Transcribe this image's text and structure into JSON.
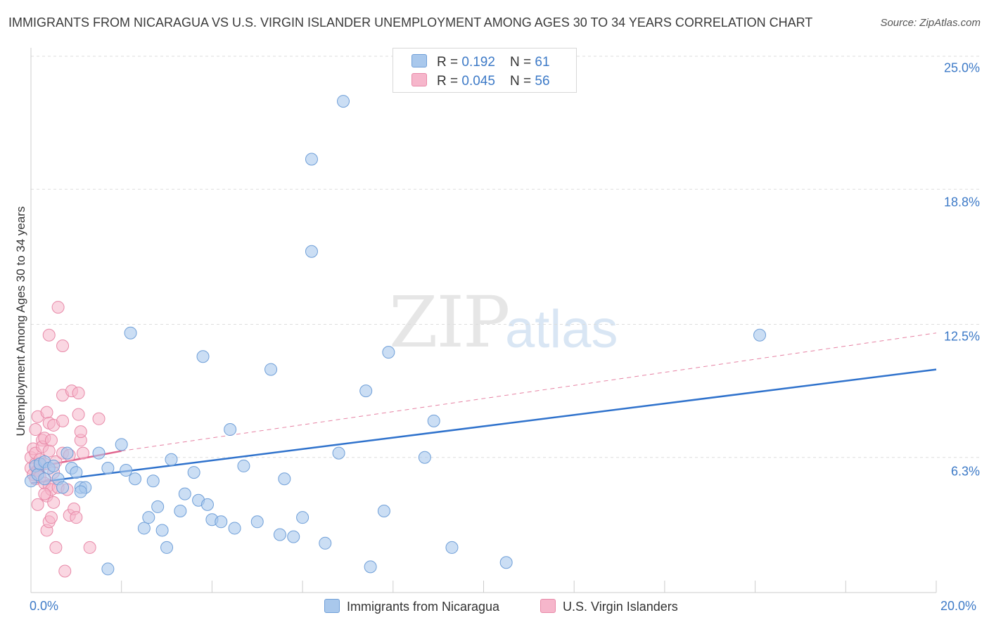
{
  "title": "IMMIGRANTS FROM NICARAGUA VS U.S. VIRGIN ISLANDER UNEMPLOYMENT AMONG AGES 30 TO 34 YEARS CORRELATION CHART",
  "source": "Source: ZipAtlas.com",
  "watermark": {
    "part1": "ZIP",
    "part2": "atlas"
  },
  "legend": {
    "rows": [
      {
        "r_label": "R = ",
        "r_value": "0.192",
        "n_label": "N = ",
        "n_value": "61"
      },
      {
        "r_label": "R = ",
        "r_value": "0.045",
        "n_label": "N = ",
        "n_value": "56"
      }
    ]
  },
  "colors": {
    "blue_fill": "#a9c8ec",
    "blue_stroke": "#6f9fd8",
    "blue_line": "#2f72cc",
    "pink_fill": "#f6b6cb",
    "pink_stroke": "#e889a8",
    "pink_line": "#e0638d",
    "tick_text": "#3d7ac7",
    "grid": "#dddddd"
  },
  "chart_data": {
    "type": "scatter",
    "title": "IMMIGRANTS FROM NICARAGUA VS U.S. VIRGIN ISLANDER UNEMPLOYMENT AMONG AGES 30 TO 34 YEARS CORRELATION CHART",
    "xlabel": "",
    "ylabel": "Unemployment Among Ages 30 to 34 years",
    "xlim": [
      0,
      20
    ],
    "ylim": [
      0,
      25
    ],
    "x_tick_labels": [
      "0.0%",
      "20.0%"
    ],
    "y_ticks": [
      6.3,
      12.5,
      18.8,
      25.0
    ],
    "y_tick_labels": [
      "6.3%",
      "12.5%",
      "18.8%",
      "25.0%"
    ],
    "grid": true,
    "legend_position": "top-center",
    "series": [
      {
        "name": "Immigrants from Nicaragua",
        "r": 0.192,
        "n": 61,
        "trend": {
          "x": [
            0,
            20
          ],
          "y": [
            5.1,
            10.4
          ],
          "style": "solid"
        },
        "points": [
          [
            0.0,
            5.2
          ],
          [
            0.1,
            5.9
          ],
          [
            0.15,
            5.5
          ],
          [
            0.2,
            6.0
          ],
          [
            0.3,
            6.1
          ],
          [
            0.4,
            5.8
          ],
          [
            0.5,
            5.9
          ],
          [
            0.6,
            5.3
          ],
          [
            0.7,
            4.9
          ],
          [
            0.8,
            6.5
          ],
          [
            0.9,
            5.8
          ],
          [
            1.0,
            5.6
          ],
          [
            1.1,
            4.9
          ],
          [
            1.2,
            4.9
          ],
          [
            1.5,
            6.5
          ],
          [
            1.7,
            5.8
          ],
          [
            2.0,
            6.9
          ],
          [
            2.1,
            5.7
          ],
          [
            2.2,
            12.1
          ],
          [
            2.3,
            5.3
          ],
          [
            2.5,
            3.0
          ],
          [
            2.6,
            3.5
          ],
          [
            2.7,
            5.2
          ],
          [
            2.9,
            2.9
          ],
          [
            3.0,
            2.1
          ],
          [
            3.1,
            6.2
          ],
          [
            3.3,
            3.8
          ],
          [
            3.4,
            4.6
          ],
          [
            3.6,
            5.6
          ],
          [
            3.7,
            4.3
          ],
          [
            3.8,
            11.0
          ],
          [
            3.9,
            4.1
          ],
          [
            4.0,
            3.4
          ],
          [
            4.2,
            3.3
          ],
          [
            4.4,
            7.6
          ],
          [
            4.5,
            3.0
          ],
          [
            4.7,
            5.9
          ],
          [
            5.0,
            3.3
          ],
          [
            5.3,
            10.4
          ],
          [
            5.5,
            2.7
          ],
          [
            5.6,
            5.3
          ],
          [
            5.8,
            2.6
          ],
          [
            6.0,
            3.5
          ],
          [
            6.2,
            15.9
          ],
          [
            6.2,
            20.2
          ],
          [
            6.5,
            2.3
          ],
          [
            6.8,
            6.5
          ],
          [
            6.9,
            22.9
          ],
          [
            7.4,
            9.4
          ],
          [
            7.5,
            1.2
          ],
          [
            7.8,
            3.8
          ],
          [
            7.9,
            11.2
          ],
          [
            8.7,
            6.3
          ],
          [
            8.9,
            8.0
          ],
          [
            9.3,
            2.1
          ],
          [
            10.5,
            1.4
          ],
          [
            1.7,
            1.1
          ],
          [
            16.1,
            12.0
          ],
          [
            1.1,
            4.7
          ],
          [
            2.8,
            4.0
          ],
          [
            0.3,
            5.3
          ]
        ]
      },
      {
        "name": "U.S. Virgin Islanders",
        "r": 0.045,
        "n": 56,
        "trend": {
          "x": [
            0,
            2.0
          ],
          "y": [
            5.8,
            6.6
          ],
          "style": "solid",
          "extended": {
            "x": [
              2.0,
              20
            ],
            "y": [
              6.6,
              12.1
            ],
            "style": "dashed"
          }
        },
        "points": [
          [
            0.0,
            5.8
          ],
          [
            0.0,
            6.3
          ],
          [
            0.05,
            5.5
          ],
          [
            0.05,
            6.7
          ],
          [
            0.1,
            6.0
          ],
          [
            0.1,
            5.3
          ],
          [
            0.1,
            6.5
          ],
          [
            0.15,
            5.7
          ],
          [
            0.15,
            4.1
          ],
          [
            0.15,
            8.2
          ],
          [
            0.2,
            5.9
          ],
          [
            0.2,
            6.2
          ],
          [
            0.2,
            5.4
          ],
          [
            0.25,
            7.1
          ],
          [
            0.25,
            6.8
          ],
          [
            0.3,
            5.1
          ],
          [
            0.3,
            6.0
          ],
          [
            0.3,
            7.2
          ],
          [
            0.35,
            8.4
          ],
          [
            0.35,
            4.5
          ],
          [
            0.35,
            2.9
          ],
          [
            0.4,
            6.6
          ],
          [
            0.4,
            5.0
          ],
          [
            0.4,
            7.9
          ],
          [
            0.4,
            12.0
          ],
          [
            0.4,
            3.3
          ],
          [
            0.45,
            4.8
          ],
          [
            0.45,
            7.1
          ],
          [
            0.45,
            3.5
          ],
          [
            0.5,
            5.6
          ],
          [
            0.5,
            4.2
          ],
          [
            0.5,
            7.8
          ],
          [
            0.55,
            6.1
          ],
          [
            0.55,
            2.1
          ],
          [
            0.6,
            4.9
          ],
          [
            0.6,
            13.3
          ],
          [
            0.7,
            11.5
          ],
          [
            0.7,
            8.0
          ],
          [
            0.7,
            9.2
          ],
          [
            0.7,
            6.5
          ],
          [
            0.75,
            1.0
          ],
          [
            0.8,
            4.8
          ],
          [
            0.85,
            6.4
          ],
          [
            0.85,
            3.6
          ],
          [
            0.9,
            9.4
          ],
          [
            0.95,
            3.9
          ],
          [
            1.0,
            3.5
          ],
          [
            1.05,
            8.3
          ],
          [
            1.05,
            9.3
          ],
          [
            1.1,
            7.1
          ],
          [
            1.15,
            6.5
          ],
          [
            1.1,
            7.5
          ],
          [
            1.3,
            2.1
          ],
          [
            1.5,
            8.1
          ],
          [
            0.1,
            7.6
          ],
          [
            0.3,
            4.6
          ]
        ]
      }
    ]
  },
  "bottom_legend": {
    "items": [
      {
        "label": "Immigrants from Nicaragua"
      },
      {
        "label": "U.S. Virgin Islanders"
      }
    ]
  }
}
